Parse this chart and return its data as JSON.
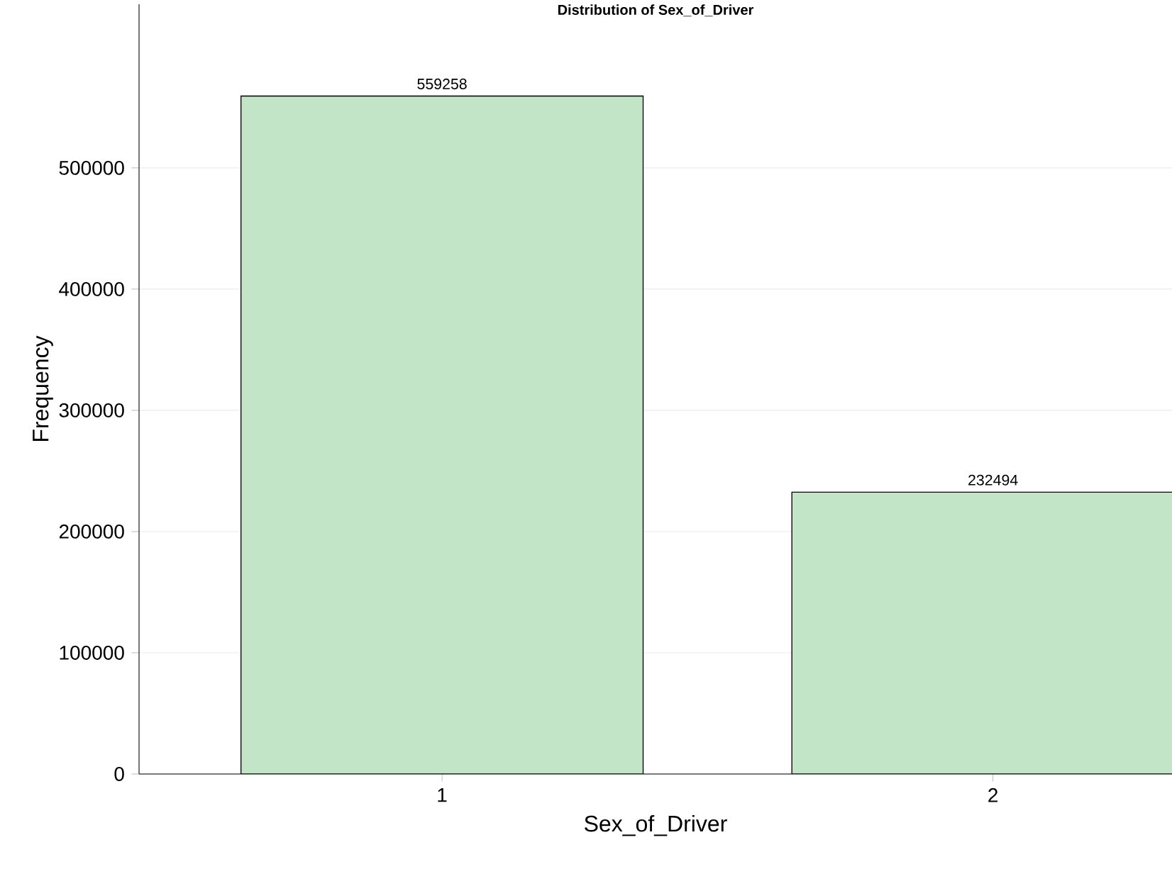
{
  "chart_data": {
    "type": "bar",
    "title": "Distribution of Sex_of_Driver",
    "xlabel": "Sex_of_Driver",
    "ylabel": "Frequency",
    "categories": [
      "1",
      "2"
    ],
    "values": [
      559258,
      232494
    ],
    "color": "#c2e5c8",
    "ylim": [
      0,
      635000
    ],
    "yticks": [
      0,
      100000,
      200000,
      300000,
      400000,
      500000
    ],
    "grid": "y",
    "data_labels": true
  }
}
